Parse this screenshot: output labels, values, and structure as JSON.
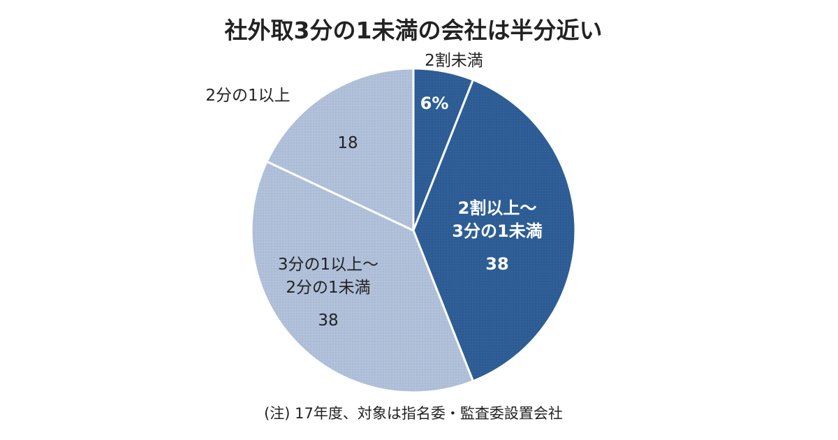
{
  "chart_data": {
    "type": "pie",
    "title": "社外取3分の1未満の会社は半分近い",
    "note": "(注) 17年度、対象は指名委・監査委設置会社",
    "start": "12 o'clock, clockwise",
    "slices": [
      {
        "label": "2割未満",
        "label_lines": [
          "2割未満"
        ],
        "value": 6,
        "value_text": "6%",
        "color": "#2c5c93",
        "label_position": "outside",
        "text_color": "#ffffff"
      },
      {
        "label": "2割以上～3分の1未満",
        "label_lines": [
          "2割以上～",
          "3分の1未満"
        ],
        "value": 38,
        "value_text": "38",
        "color": "#2c5c93",
        "label_position": "inside",
        "text_color": "#ffffff"
      },
      {
        "label": "3分の1以上～2分の1未満",
        "label_lines": [
          "3分の1以上～",
          "2分の1未満"
        ],
        "value": 38,
        "value_text": "38",
        "color": "#b2c1da",
        "label_position": "inside",
        "text_color": "#222222"
      },
      {
        "label": "2分の1以上",
        "label_lines": [
          "2分の1以上"
        ],
        "value": 18,
        "value_text": "18",
        "color": "#b2c1da",
        "label_position": "outside",
        "text_color": "#222222"
      }
    ]
  }
}
